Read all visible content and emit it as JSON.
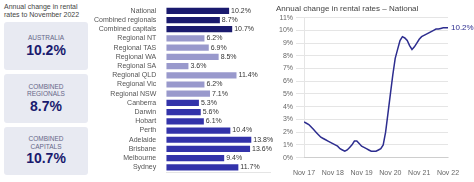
{
  "chart_data": [
    {
      "type": "stat",
      "title": "Annual change in rental rates to November 2022",
      "categories": [
        "AUSTRALIA",
        "COMBINED\nREGIONALS",
        "COMBINED\nCAPITALS"
      ],
      "values": [
        10.2,
        8.7,
        10.7
      ],
      "value_labels": [
        "10.2%",
        "8.7%",
        "10.7%"
      ]
    },
    {
      "type": "bar",
      "orientation": "horizontal",
      "categories": [
        "National",
        "Combined regionals",
        "Combined capitals",
        "Regional NT",
        "Regional TAS",
        "Regional WA",
        "Regional SA",
        "Regional QLD",
        "Regional Vic",
        "Regional NSW",
        "Canberra",
        "Darwin",
        "Hobart",
        "Perth",
        "Adelaide",
        "Brisbane",
        "Melbourne",
        "Sydney"
      ],
      "values": [
        10.2,
        8.7,
        10.7,
        6.2,
        6.9,
        8.5,
        3.6,
        11.4,
        6.2,
        7.1,
        5.3,
        5.6,
        6.1,
        10.4,
        13.8,
        13.6,
        9.4,
        11.7
      ],
      "value_labels": [
        "10.2%",
        "8.7%",
        "10.7%",
        "6.2%",
        "6.9%",
        "8.5%",
        "3.6%",
        "11.4%",
        "6.2%",
        "7.1%",
        "5.3%",
        "5.6%",
        "6.1%",
        "10.4%",
        "13.8%",
        "13.6%",
        "9.4%",
        "11.7%"
      ],
      "colors": [
        "#1a1a6e",
        "#1a1a6e",
        "#1a1a6e",
        "#9999cc",
        "#9999cc",
        "#9999cc",
        "#9999cc",
        "#9999cc",
        "#9999cc",
        "#9999cc",
        "#3333aa",
        "#3333aa",
        "#3333aa",
        "#3333aa",
        "#3333aa",
        "#3333aa",
        "#3333aa",
        "#3333aa"
      ],
      "data_labels": true,
      "xlim": [
        0,
        16.836
      ],
      "xticks": [],
      "tick_labels": "y",
      "grid": false
    },
    {
      "type": "line",
      "title": "Annual change in rental rates – National",
      "x": [
        0,
        0.5,
        1,
        1.5,
        2,
        2.5,
        3,
        3.5,
        4,
        4.5,
        5,
        5.5,
        6,
        6.5,
        7,
        7.5,
        8,
        8.5,
        9,
        9.5,
        10,
        10.5,
        11,
        11.5,
        12,
        12.5,
        13,
        13.5,
        14,
        14.5,
        15,
        15.5,
        16,
        16.5,
        17,
        17.5,
        18,
        18.5,
        19,
        19.5,
        20,
        20.5,
        21,
        21.5,
        22,
        22.5,
        23,
        23.5,
        24,
        24.5,
        25,
        25.5,
        26,
        26.5,
        27,
        27.5,
        28,
        28.5,
        29,
        29.5,
        30
      ],
      "values": [
        2.8,
        2.7,
        2.6,
        2.4,
        2.2,
        2.0,
        1.8,
        1.6,
        1.5,
        1.4,
        1.3,
        1.2,
        1.1,
        1.0,
        0.9,
        0.7,
        0.6,
        0.5,
        0.6,
        0.8,
        1.0,
        1.3,
        1.3,
        1.1,
        0.9,
        0.8,
        0.7,
        0.6,
        0.5,
        0.5,
        0.5,
        0.6,
        0.7,
        1.0,
        2.0,
        3.5,
        5.0,
        6.5,
        7.8,
        8.5,
        9.2,
        9.5,
        9.4,
        9.2,
        8.8,
        8.5,
        8.7,
        9.0,
        9.3,
        9.5,
        9.6,
        9.7,
        9.8,
        9.9,
        10.0,
        10.1,
        10.1,
        10.15,
        10.2,
        10.2,
        10.2
      ],
      "color": "#2d2d8f",
      "xlim": [
        0,
        30
      ],
      "xticks": [
        {
          "value": 0,
          "label": "Nov 17"
        },
        {
          "value": 6,
          "label": "Nov 18"
        },
        {
          "value": 12,
          "label": "Nov 19"
        },
        {
          "value": 18,
          "label": "Nov 20"
        },
        {
          "value": 24,
          "label": "Nov 21"
        },
        {
          "value": 30,
          "label": "Nov 22"
        }
      ],
      "ylim": [
        0,
        11
      ],
      "yticks": [
        {
          "value": 0,
          "label": "0%"
        },
        {
          "value": 1,
          "label": "1%"
        },
        {
          "value": 2,
          "label": "2%"
        },
        {
          "value": 3,
          "label": "3%"
        },
        {
          "value": 4,
          "label": "4%"
        },
        {
          "value": 5,
          "label": "5%"
        },
        {
          "value": 6,
          "label": "6%"
        },
        {
          "value": 7,
          "label": "7%"
        },
        {
          "value": 8,
          "label": "8%"
        },
        {
          "value": 9,
          "label": "9%"
        },
        {
          "value": 10,
          "label": "10%"
        },
        {
          "value": 11,
          "label": "11%"
        }
      ],
      "grid": "y",
      "annotations": [
        {
          "text": "10.2%",
          "x": 30,
          "y": 10.2
        }
      ]
    }
  ]
}
